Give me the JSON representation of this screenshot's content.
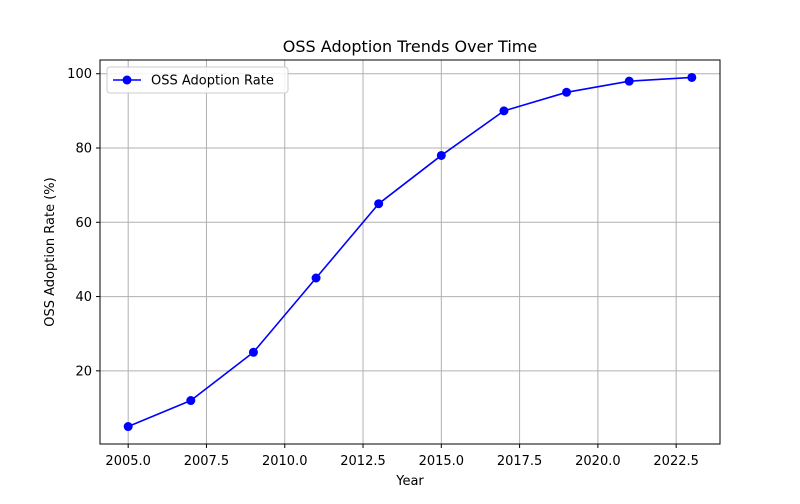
{
  "chart_data": {
    "type": "line",
    "title": "OSS Adoption Trends Over Time",
    "xlabel": "Year",
    "ylabel": "OSS Adoption Rate (%)",
    "x": [
      2005,
      2007,
      2009,
      2011,
      2013,
      2015,
      2017,
      2019,
      2021,
      2023
    ],
    "series": [
      {
        "name": "OSS Adoption Rate",
        "values": [
          5,
          12,
          25,
          45,
          65,
          78,
          90,
          95,
          98,
          99
        ],
        "color": "#0000ff",
        "marker": "circle"
      }
    ],
    "xlim": [
      2004.1,
      2023.9
    ],
    "ylim": [
      0.3,
      103.7
    ],
    "x_ticks": [
      2005,
      2007.5,
      2010,
      2012.5,
      2015,
      2017.5,
      2020,
      2022.5
    ],
    "x_tick_labels": [
      "2005.0",
      "2007.5",
      "2010.0",
      "2012.5",
      "2015.0",
      "2017.5",
      "2020.0",
      "2022.5"
    ],
    "y_ticks": [
      20,
      40,
      60,
      80,
      100
    ],
    "y_tick_labels": [
      "20",
      "40",
      "60",
      "80",
      "100"
    ],
    "grid": true,
    "legend_position": "top-left"
  }
}
